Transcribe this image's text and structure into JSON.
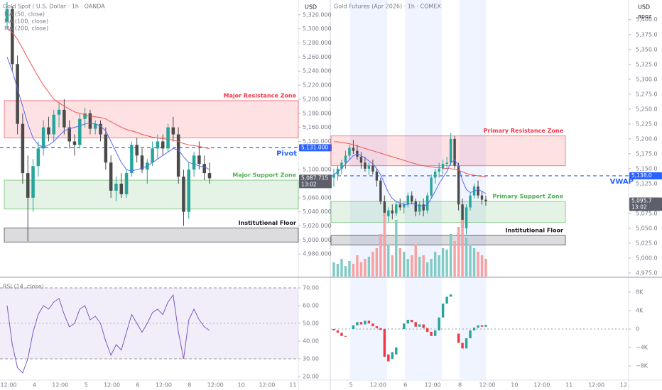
{
  "chart_data": [
    {
      "type": "candlestick",
      "title": "Gold Spot / U.S. Dollar · 1h · OANDA",
      "indicator_labels": [
        "MA (50, close)",
        "MA (100, close)",
        "MA (200, close)"
      ],
      "axis_unit": "USD",
      "ylim": [
        4948,
        5341
      ],
      "yticks": [
        {
          "value": 5320,
          "label": "5,320.000"
        },
        {
          "value": 5300,
          "label": "5,300.000"
        },
        {
          "value": 5280,
          "label": "5,280.000"
        },
        {
          "value": 5260,
          "label": "5,260.000"
        },
        {
          "value": 5240,
          "label": "5,240.000"
        },
        {
          "value": 5220,
          "label": "5,220.000"
        },
        {
          "value": 5200,
          "label": "5,200.000"
        },
        {
          "value": 5180,
          "label": "5,180.000"
        },
        {
          "value": 5160,
          "label": "5,160.000"
        },
        {
          "value": 5140,
          "label": "5,140.000"
        },
        {
          "value": 5100,
          "label": "5,100.000"
        },
        {
          "value": 5060,
          "label": "5,060.000"
        },
        {
          "value": 5040,
          "label": "5,040.000"
        },
        {
          "value": 5020,
          "label": "5,020.000"
        },
        {
          "value": 5000,
          "label": "5,000.000"
        },
        {
          "value": 4980,
          "label": "4,980.000"
        }
      ],
      "grid": false,
      "up_color": "#26a69a",
      "down_color": "#4a4a4a",
      "open": [
        5310,
        5328,
        5250,
        5165,
        5095,
        5060,
        5105,
        5130,
        5160,
        5150,
        5178,
        5185,
        5160,
        5140,
        5135,
        5172,
        5180,
        5158,
        5165,
        5150,
        5110,
        5070,
        5080,
        5065,
        5095,
        5135,
        5120,
        5100,
        5110,
        5130,
        5140,
        5130,
        5160,
        5150,
        5090,
        5040,
        5100,
        5120,
        5108,
        5095
      ],
      "high": [
        5338,
        5332,
        5262,
        5180,
        5120,
        5115,
        5140,
        5170,
        5175,
        5185,
        5195,
        5200,
        5170,
        5150,
        5180,
        5188,
        5185,
        5170,
        5170,
        5160,
        5120,
        5090,
        5095,
        5100,
        5140,
        5145,
        5130,
        5115,
        5140,
        5150,
        5150,
        5165,
        5175,
        5160,
        5100,
        5110,
        5125,
        5140,
        5120,
        5110
      ],
      "low": [
        5300,
        5240,
        5150,
        5080,
        4998,
        5040,
        5090,
        5120,
        5140,
        5140,
        5160,
        5150,
        5130,
        5120,
        5130,
        5160,
        5150,
        5150,
        5140,
        5100,
        5060,
        5055,
        5060,
        5060,
        5090,
        5110,
        5095,
        5080,
        5105,
        5115,
        5120,
        5125,
        5140,
        5080,
        5020,
        5030,
        5090,
        5100,
        5085,
        5080
      ],
      "close": [
        5328,
        5250,
        5165,
        5095,
        5060,
        5105,
        5130,
        5160,
        5150,
        5178,
        5185,
        5160,
        5140,
        5135,
        5172,
        5180,
        5158,
        5165,
        5150,
        5110,
        5070,
        5080,
        5065,
        5095,
        5135,
        5120,
        5100,
        5110,
        5130,
        5140,
        5130,
        5160,
        5150,
        5090,
        5040,
        5100,
        5120,
        5108,
        5095,
        5087.715
      ],
      "series": [
        {
          "color": "#ef5350",
          "values": [
            5300,
            5295,
            5285,
            5272,
            5258,
            5245,
            5232,
            5220,
            5210,
            5200,
            5195,
            5190,
            5186,
            5182,
            5180,
            5178,
            5176,
            5175,
            5174,
            5172,
            5168,
            5164,
            5160,
            5157,
            5155,
            5153,
            5150,
            5148,
            5146,
            5145,
            5144,
            5143,
            5142,
            5140,
            5137,
            5135,
            5134,
            5133,
            5131,
            5130
          ]
        },
        {
          "color": "#5b6cf0",
          "values": [
            5260,
            5240,
            5215,
            5190,
            5165,
            5145,
            5135,
            5132,
            5135,
            5140,
            5148,
            5155,
            5158,
            5160,
            5162,
            5165,
            5166,
            5165,
            5162,
            5155,
            5140,
            5125,
            5110,
            5100,
            5098,
            5100,
            5102,
            5105,
            5110,
            5115,
            5120,
            5125,
            5130,
            5128,
            5118,
            5110,
            5108,
            5105,
            5104,
            5100
          ]
        }
      ],
      "zones": [
        {
          "label": "Major Resistance Zone",
          "ylim": [
            5145,
            5198
          ],
          "color": "#f23645"
        },
        {
          "label": "Major Support Zone",
          "ylim": [
            5044,
            5085
          ],
          "color": "#4caf50"
        },
        {
          "label": "Institutional Floor",
          "ylim": [
            4997,
            5017
          ],
          "color": "#131722"
        }
      ],
      "lines": [
        {
          "label": "Pivot",
          "value": 5131,
          "color": "#2962ff"
        }
      ],
      "price_tags": [
        {
          "value": 5131,
          "label": "5,131.000",
          "color": "#2962ff"
        },
        {
          "value": 5087.715,
          "label": "5,087.715",
          "time": "13:02",
          "color": "#5d606b"
        }
      ],
      "x_labels": [
        "12:00",
        "4",
        "12:00",
        "5",
        "12:00",
        "6",
        "12:00",
        "8",
        "12:00",
        "10",
        "12:00",
        "11"
      ]
    },
    {
      "type": "line",
      "title": "RSI (14, close)",
      "ylim": [
        18.4,
        74.4
      ],
      "yticks": [
        {
          "value": 70,
          "label": "70.00"
        },
        {
          "value": 60,
          "label": "60.00"
        },
        {
          "value": 50,
          "label": "50.00"
        },
        {
          "value": 40,
          "label": "40.00"
        },
        {
          "value": 30,
          "label": "30.00"
        },
        {
          "value": 20,
          "label": "20.00"
        }
      ],
      "band": [
        30,
        70
      ],
      "midline": 50,
      "series": [
        {
          "color": "#7e57c2",
          "values": [
            60,
            38,
            25,
            22,
            30,
            45,
            55,
            60,
            58,
            62,
            64,
            55,
            48,
            50,
            58,
            60,
            52,
            54,
            50,
            40,
            32,
            38,
            35,
            45,
            55,
            50,
            45,
            50,
            56,
            58,
            55,
            62,
            66,
            45,
            30,
            52,
            58,
            52,
            48,
            46
          ]
        }
      ]
    },
    {
      "type": "candlestick",
      "title": "Gold Futures (Apr 2026) · 1h · COMEX",
      "axis_unit": "USD",
      "axis_note": "apoz",
      "ylim": [
        4969,
        5433
      ],
      "yticks": [
        {
          "value": 5400,
          "label": "5,400.0"
        },
        {
          "value": 5375,
          "label": "5,375.0"
        },
        {
          "value": 5350,
          "label": "5,350.0"
        },
        {
          "value": 5325,
          "label": "5,325.0"
        },
        {
          "value": 5300,
          "label": "5,300.0"
        },
        {
          "value": 5275,
          "label": "5,275.0"
        },
        {
          "value": 5250,
          "label": "5,250.0"
        },
        {
          "value": 5225,
          "label": "5,225.0"
        },
        {
          "value": 5200,
          "label": "5,200.0"
        },
        {
          "value": 5175,
          "label": "5,175.0"
        },
        {
          "value": 5150,
          "label": "5,150.0"
        },
        {
          "value": 5125,
          "label": "5,125.0"
        },
        {
          "value": 5075,
          "label": "5,075.0"
        },
        {
          "value": 5050,
          "label": "5,050.0"
        },
        {
          "value": 5025,
          "label": "5,025.0"
        },
        {
          "value": 5000,
          "label": "5,000.0"
        },
        {
          "value": 4975,
          "label": "4,975.0"
        }
      ],
      "grid": false,
      "up_color": "#26a69a",
      "down_color": "#4a4a4a",
      "open": [
        5135,
        5140,
        5150,
        5160,
        5172,
        5185,
        5180,
        5170,
        5160,
        5150,
        5155,
        5145,
        5130,
        5095,
        5070,
        5080,
        5075,
        5090,
        5085,
        5090,
        5105,
        5095,
        5078,
        5090,
        5080,
        5105,
        5135,
        5145,
        5150,
        5158,
        5160,
        5200,
        5155,
        5090,
        5050,
        5085,
        5105,
        5120,
        5105,
        5098
      ],
      "high": [
        5150,
        5155,
        5165,
        5180,
        5190,
        5198,
        5190,
        5178,
        5170,
        5160,
        5165,
        5150,
        5135,
        5105,
        5085,
        5090,
        5095,
        5100,
        5095,
        5110,
        5112,
        5100,
        5095,
        5100,
        5110,
        5140,
        5150,
        5160,
        5165,
        5170,
        5210,
        5205,
        5160,
        5100,
        5090,
        5110,
        5125,
        5130,
        5112,
        5105
      ],
      "low": [
        5120,
        5130,
        5140,
        5150,
        5165,
        5175,
        5165,
        5150,
        5145,
        5140,
        5140,
        5120,
        5090,
        5060,
        5060,
        5065,
        5070,
        5080,
        5075,
        5085,
        5090,
        5070,
        5072,
        5070,
        5075,
        5100,
        5125,
        5135,
        5140,
        5150,
        5155,
        5150,
        5080,
        5030,
        5040,
        5080,
        5100,
        5100,
        5090,
        5088
      ],
      "close": [
        5140,
        5150,
        5160,
        5172,
        5185,
        5180,
        5170,
        5160,
        5150,
        5155,
        5145,
        5130,
        5095,
        5070,
        5080,
        5075,
        5090,
        5085,
        5090,
        5105,
        5095,
        5078,
        5090,
        5080,
        5105,
        5135,
        5145,
        5150,
        5158,
        5160,
        5200,
        5155,
        5090,
        5050,
        5085,
        5105,
        5120,
        5105,
        5098,
        5095.7
      ],
      "series": [
        {
          "color": "#ef5350",
          "values": [
            5195,
            5195,
            5194,
            5193,
            5192,
            5190,
            5188,
            5186,
            5184,
            5182,
            5180,
            5178,
            5176,
            5174,
            5172,
            5170,
            5168,
            5166,
            5164,
            5162,
            5160,
            5158,
            5156,
            5155,
            5154,
            5153,
            5152,
            5152,
            5151,
            5150,
            5150,
            5149,
            5147,
            5145,
            5142,
            5140,
            5139,
            5138,
            5137,
            5136
          ]
        },
        {
          "color": "#5b6cf0",
          "values": [
            5140,
            5145,
            5150,
            5158,
            5165,
            5172,
            5175,
            5172,
            5168,
            5163,
            5158,
            5150,
            5140,
            5125,
            5110,
            5100,
            5095,
            5092,
            5090,
            5090,
            5092,
            5090,
            5088,
            5087,
            5090,
            5100,
            5112,
            5125,
            5135,
            5145,
            5160,
            5165,
            5155,
            5130,
            5115,
            5110,
            5112,
            5115,
            5112,
            5108
          ]
        }
      ],
      "zones": [
        {
          "label": "Primary Resistance Zone",
          "ylim": [
            5155,
            5205
          ],
          "color": "#f23645"
        },
        {
          "label": "Primary Support Zone",
          "ylim": [
            5060,
            5095
          ],
          "color": "#4caf50"
        },
        {
          "label": "Institutional Floor",
          "ylim": [
            5022,
            5038
          ],
          "color": "#131722"
        }
      ],
      "lines": [
        {
          "label": "VWAP",
          "value": 5138,
          "color": "#2962ff"
        }
      ],
      "price_tags": [
        {
          "value": 5138,
          "label": "5,138.0",
          "color": "#2962ff"
        },
        {
          "value": 5095.7,
          "label": "5,095.7",
          "time": "13:02",
          "color": "#5d606b"
        }
      ],
      "x_labels": [
        "5",
        "12:00",
        "6",
        "12:00",
        "8",
        "12:00",
        "10",
        "12:00",
        "11",
        "12:00",
        "12"
      ]
    },
    {
      "type": "bar",
      "ylim": [
        0,
        100
      ],
      "up_color": "#80cbc4",
      "down_color": "#f7a1a0",
      "values": [
        20,
        18,
        25,
        15,
        22,
        18,
        30,
        20,
        25,
        28,
        35,
        40,
        60,
        90,
        45,
        30,
        80,
        40,
        35,
        25,
        30,
        45,
        28,
        30,
        20,
        25,
        35,
        30,
        40,
        38,
        60,
        50,
        70,
        80,
        55,
        45,
        40,
        35,
        30,
        25
      ]
    },
    {
      "type": "candlestick",
      "ylim": [
        -10900,
        10600
      ],
      "yticks": [
        {
          "value": 8000,
          "label": "8K"
        },
        {
          "value": 4000,
          "label": "4K"
        },
        0,
        {
          "value": -4000,
          "label": "−4K"
        },
        {
          "value": -8000,
          "label": "−8K"
        }
      ],
      "zero_line": true,
      "up_color": "#26a69a",
      "down_color": "#f23645",
      "open": [
        0,
        -300,
        -800,
        -1500,
        null,
        0,
        800,
        1500,
        1000,
        1800,
        1200,
        600,
        200,
        0,
        -5500,
        -6500,
        -5500,
        null,
        0,
        1200,
        2000,
        1500,
        500,
        1000,
        200,
        -600,
        -1500,
        -300,
        2500,
        5500,
        7000,
        null,
        -1000,
        -3000,
        -4200,
        -2000,
        -300,
        300,
        800,
        500
      ],
      "close": [
        -300,
        -800,
        -1500,
        -1600,
        null,
        800,
        1500,
        1000,
        1800,
        1200,
        600,
        200,
        -200,
        -6000,
        -7000,
        -5000,
        -4000,
        null,
        1200,
        2000,
        1500,
        500,
        1000,
        200,
        -600,
        -1500,
        -300,
        2500,
        5500,
        7000,
        7500,
        null,
        -3000,
        -4200,
        -2000,
        -300,
        300,
        800,
        500,
        900
      ]
    }
  ]
}
